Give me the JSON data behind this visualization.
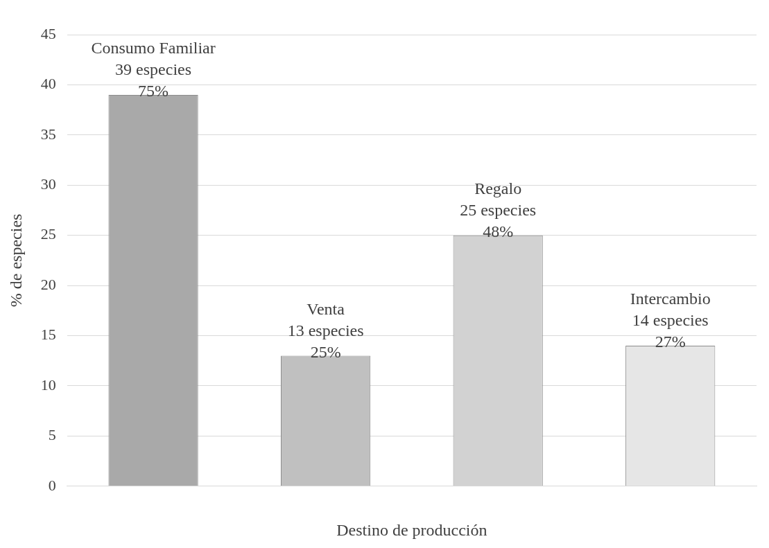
{
  "chart_data": {
    "type": "bar",
    "xlabel": "Destino de producción",
    "ylabel": "% de especies",
    "categories": [
      null,
      null,
      null,
      null
    ],
    "values": [
      39,
      13,
      25,
      14
    ],
    "colors": [
      "#a9a9a9",
      "#c0c0c0",
      "#d2d2d2",
      "#e6e6e6"
    ],
    "value_labels": [
      "Consumo Familiar\n39 especies\n75%",
      "Venta\n13 especies\n25%",
      "Regalo\n25 especies\n48%",
      "Intercambio\n14 especies\n27%"
    ],
    "ylim": [
      0,
      45
    ],
    "yticks": [
      0,
      5,
      10,
      15,
      20,
      25,
      30,
      35,
      40,
      45
    ],
    "grid": "y",
    "legend": false
  }
}
